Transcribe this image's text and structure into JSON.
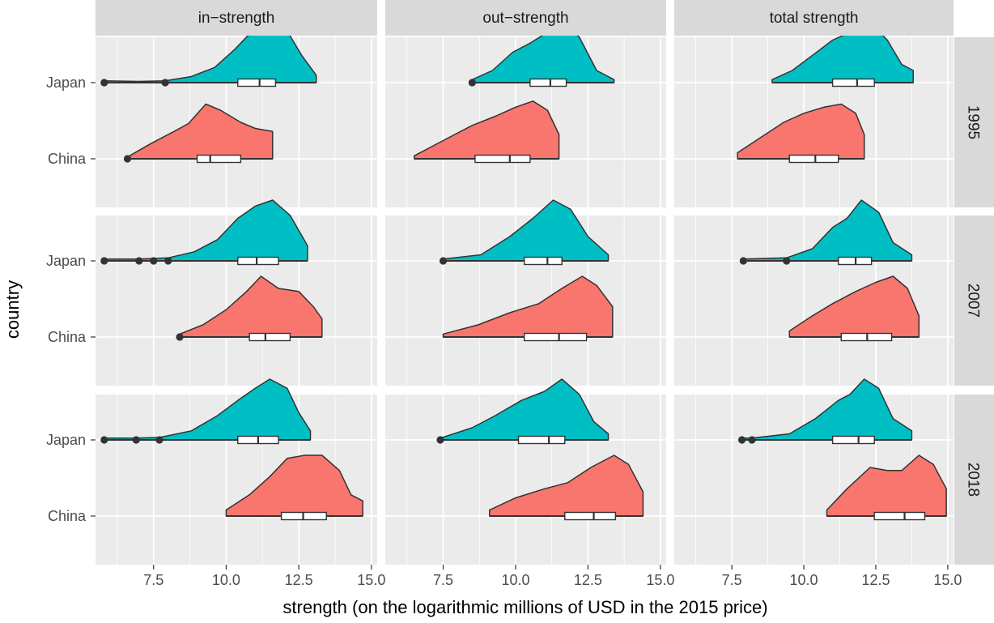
{
  "chart_data": {
    "type": "raincloud",
    "xlabel": "strength (on the logarithmic millions of USD in the 2015 price)",
    "ylabel": "country",
    "xlim": [
      5.5,
      15.2
    ],
    "x_ticks": [
      "7.5",
      "10.0",
      "12.5",
      "15.0"
    ],
    "x_tick_values": [
      7.5,
      10.0,
      12.5,
      15.0
    ],
    "categories": [
      "Japan",
      "China"
    ],
    "columns": [
      "in−strength",
      "out−strength",
      "total strength"
    ],
    "rows": [
      "1995",
      "2007",
      "2018"
    ],
    "colors": {
      "Japan": "#00BFC4",
      "China": "#F8766D",
      "panel_bg": "#EBEBEB",
      "strip_bg": "#D9D9D9"
    },
    "grid": true,
    "panels": [
      {
        "column": "in−strength",
        "row": "1995",
        "series": [
          {
            "country": "Japan",
            "min": 5.8,
            "q1": 10.4,
            "median": 11.15,
            "q3": 11.7,
            "max": 13.1,
            "outliers": [
              5.8,
              7.9
            ],
            "density": [
              [
                5.8,
                0.03
              ],
              [
                7.0,
                0.02
              ],
              [
                7.9,
                0.03
              ],
              [
                8.8,
                0.1
              ],
              [
                9.6,
                0.25
              ],
              [
                10.3,
                0.55
              ],
              [
                10.9,
                0.85
              ],
              [
                11.5,
                1.0
              ],
              [
                12.1,
                0.85
              ],
              [
                12.6,
                0.45
              ],
              [
                13.1,
                0.12
              ]
            ]
          },
          {
            "country": "China",
            "min": 6.6,
            "q1": 9.0,
            "median": 9.45,
            "q3": 10.5,
            "max": 11.6,
            "outliers": [
              6.6
            ],
            "density": [
              [
                6.6,
                0.03
              ],
              [
                7.4,
                0.25
              ],
              [
                8.2,
                0.45
              ],
              [
                8.7,
                0.58
              ],
              [
                9.3,
                0.9
              ],
              [
                9.8,
                0.8
              ],
              [
                10.5,
                0.6
              ],
              [
                11.0,
                0.5
              ],
              [
                11.6,
                0.45
              ]
            ]
          }
        ]
      },
      {
        "column": "out−strength",
        "row": "1995",
        "series": [
          {
            "country": "Japan",
            "min": 8.5,
            "q1": 10.5,
            "median": 11.2,
            "q3": 11.75,
            "max": 13.4,
            "outliers": [
              8.5
            ],
            "density": [
              [
                8.5,
                0.05
              ],
              [
                9.2,
                0.2
              ],
              [
                9.9,
                0.5
              ],
              [
                10.5,
                0.65
              ],
              [
                11.0,
                0.8
              ],
              [
                11.6,
                1.0
              ],
              [
                12.2,
                0.75
              ],
              [
                12.8,
                0.2
              ],
              [
                13.4,
                0.05
              ]
            ]
          },
          {
            "country": "China",
            "min": 6.5,
            "q1": 8.6,
            "median": 9.8,
            "q3": 10.5,
            "max": 11.5,
            "outliers": [],
            "density": [
              [
                6.5,
                0.05
              ],
              [
                7.5,
                0.3
              ],
              [
                8.5,
                0.55
              ],
              [
                9.3,
                0.7
              ],
              [
                10.0,
                0.85
              ],
              [
                10.6,
                0.95
              ],
              [
                11.1,
                0.8
              ],
              [
                11.5,
                0.4
              ]
            ]
          }
        ]
      },
      {
        "column": "total strength",
        "row": "1995",
        "series": [
          {
            "country": "Japan",
            "min": 8.9,
            "q1": 11.0,
            "median": 11.85,
            "q3": 12.45,
            "max": 13.8,
            "outliers": [],
            "density": [
              [
                8.9,
                0.05
              ],
              [
                9.6,
                0.2
              ],
              [
                10.3,
                0.45
              ],
              [
                11.0,
                0.7
              ],
              [
                11.7,
                0.85
              ],
              [
                12.3,
                1.0
              ],
              [
                12.9,
                0.7
              ],
              [
                13.4,
                0.3
              ],
              [
                13.8,
                0.2
              ]
            ]
          },
          {
            "country": "China",
            "min": 7.7,
            "q1": 9.5,
            "median": 10.4,
            "q3": 11.2,
            "max": 12.1,
            "outliers": [],
            "density": [
              [
                7.7,
                0.1
              ],
              [
                8.5,
                0.35
              ],
              [
                9.3,
                0.6
              ],
              [
                10.0,
                0.75
              ],
              [
                10.7,
                0.85
              ],
              [
                11.3,
                0.9
              ],
              [
                11.8,
                0.75
              ],
              [
                12.1,
                0.4
              ]
            ]
          }
        ]
      },
      {
        "column": "in−strength",
        "row": "2007",
        "series": [
          {
            "country": "Japan",
            "min": 5.8,
            "q1": 10.4,
            "median": 11.05,
            "q3": 11.8,
            "max": 12.8,
            "outliers": [
              5.8,
              7.0,
              7.5,
              8.0
            ],
            "density": [
              [
                5.8,
                0.03
              ],
              [
                7.0,
                0.03
              ],
              [
                8.0,
                0.05
              ],
              [
                8.9,
                0.15
              ],
              [
                9.7,
                0.35
              ],
              [
                10.4,
                0.7
              ],
              [
                11.0,
                0.9
              ],
              [
                11.6,
                1.0
              ],
              [
                12.2,
                0.75
              ],
              [
                12.8,
                0.25
              ]
            ]
          },
          {
            "country": "China",
            "min": 8.4,
            "q1": 10.8,
            "median": 11.35,
            "q3": 12.2,
            "max": 13.3,
            "outliers": [
              8.4
            ],
            "density": [
              [
                8.4,
                0.05
              ],
              [
                9.2,
                0.2
              ],
              [
                10.0,
                0.45
              ],
              [
                10.7,
                0.75
              ],
              [
                11.2,
                1.0
              ],
              [
                11.8,
                0.8
              ],
              [
                12.5,
                0.75
              ],
              [
                13.0,
                0.5
              ],
              [
                13.3,
                0.3
              ]
            ]
          }
        ]
      },
      {
        "column": "out−strength",
        "row": "2007",
        "series": [
          {
            "country": "Japan",
            "min": 7.5,
            "q1": 10.3,
            "median": 11.1,
            "q3": 11.6,
            "max": 13.2,
            "outliers": [
              7.5
            ],
            "density": [
              [
                7.5,
                0.03
              ],
              [
                8.8,
                0.1
              ],
              [
                9.8,
                0.4
              ],
              [
                10.6,
                0.7
              ],
              [
                11.3,
                1.0
              ],
              [
                11.9,
                0.85
              ],
              [
                12.5,
                0.4
              ],
              [
                13.2,
                0.1
              ]
            ]
          },
          {
            "country": "China",
            "min": 7.5,
            "q1": 10.3,
            "median": 11.5,
            "q3": 12.45,
            "max": 13.35,
            "outliers": [],
            "density": [
              [
                7.5,
                0.05
              ],
              [
                8.7,
                0.2
              ],
              [
                9.8,
                0.4
              ],
              [
                10.8,
                0.55
              ],
              [
                11.6,
                0.8
              ],
              [
                12.3,
                1.0
              ],
              [
                12.8,
                0.85
              ],
              [
                13.35,
                0.5
              ]
            ]
          }
        ]
      },
      {
        "column": "total strength",
        "row": "2007",
        "series": [
          {
            "country": "Japan",
            "min": 7.9,
            "q1": 11.2,
            "median": 11.8,
            "q3": 12.35,
            "max": 13.75,
            "outliers": [
              7.9,
              9.4
            ],
            "density": [
              [
                7.9,
                0.03
              ],
              [
                9.4,
                0.05
              ],
              [
                10.3,
                0.2
              ],
              [
                11.0,
                0.55
              ],
              [
                11.5,
                0.7
              ],
              [
                12.0,
                1.0
              ],
              [
                12.6,
                0.8
              ],
              [
                13.1,
                0.3
              ],
              [
                13.75,
                0.1
              ]
            ]
          },
          {
            "country": "China",
            "min": 9.5,
            "q1": 11.3,
            "median": 12.2,
            "q3": 13.05,
            "max": 14.0,
            "outliers": [],
            "density": [
              [
                9.5,
                0.1
              ],
              [
                10.3,
                0.35
              ],
              [
                11.0,
                0.55
              ],
              [
                11.8,
                0.75
              ],
              [
                12.5,
                0.9
              ],
              [
                13.1,
                1.0
              ],
              [
                13.6,
                0.8
              ],
              [
                14.0,
                0.35
              ]
            ]
          }
        ]
      },
      {
        "column": "in−strength",
        "row": "2018",
        "series": [
          {
            "country": "Japan",
            "min": 5.8,
            "q1": 10.4,
            "median": 11.1,
            "q3": 11.8,
            "max": 12.9,
            "outliers": [
              5.8,
              6.9,
              7.7
            ],
            "density": [
              [
                5.8,
                0.03
              ],
              [
                6.9,
                0.03
              ],
              [
                7.7,
                0.04
              ],
              [
                8.8,
                0.15
              ],
              [
                9.7,
                0.4
              ],
              [
                10.4,
                0.65
              ],
              [
                11.0,
                0.85
              ],
              [
                11.5,
                1.0
              ],
              [
                12.1,
                0.85
              ],
              [
                12.5,
                0.45
              ],
              [
                12.9,
                0.15
              ]
            ]
          },
          {
            "country": "China",
            "min": 10.0,
            "q1": 11.9,
            "median": 12.65,
            "q3": 13.45,
            "max": 14.7,
            "outliers": [],
            "density": [
              [
                10.0,
                0.1
              ],
              [
                10.8,
                0.35
              ],
              [
                11.5,
                0.65
              ],
              [
                12.1,
                0.95
              ],
              [
                12.7,
                1.0
              ],
              [
                13.3,
                1.0
              ],
              [
                13.9,
                0.75
              ],
              [
                14.3,
                0.35
              ],
              [
                14.7,
                0.25
              ]
            ]
          }
        ]
      },
      {
        "column": "out−strength",
        "row": "2018",
        "series": [
          {
            "country": "Japan",
            "min": 7.4,
            "q1": 10.1,
            "median": 11.15,
            "q3": 11.7,
            "max": 13.2,
            "outliers": [
              7.4
            ],
            "density": [
              [
                7.4,
                0.03
              ],
              [
                8.5,
                0.2
              ],
              [
                9.3,
                0.4
              ],
              [
                10.2,
                0.65
              ],
              [
                11.0,
                0.8
              ],
              [
                11.6,
                1.0
              ],
              [
                12.2,
                0.75
              ],
              [
                12.7,
                0.3
              ],
              [
                13.2,
                0.1
              ]
            ]
          },
          {
            "country": "China",
            "min": 9.1,
            "q1": 11.7,
            "median": 12.7,
            "q3": 13.45,
            "max": 14.4,
            "outliers": [],
            "density": [
              [
                9.1,
                0.1
              ],
              [
                10.0,
                0.3
              ],
              [
                11.0,
                0.45
              ],
              [
                11.8,
                0.55
              ],
              [
                12.6,
                0.8
              ],
              [
                13.4,
                1.0
              ],
              [
                13.9,
                0.85
              ],
              [
                14.4,
                0.4
              ]
            ]
          }
        ]
      },
      {
        "column": "total strength",
        "row": "2018",
        "series": [
          {
            "country": "Japan",
            "min": 7.85,
            "q1": 11.0,
            "median": 11.9,
            "q3": 12.45,
            "max": 13.75,
            "outliers": [
              7.85,
              8.2
            ],
            "density": [
              [
                7.85,
                0.03
              ],
              [
                8.2,
                0.03
              ],
              [
                9.5,
                0.1
              ],
              [
                10.4,
                0.35
              ],
              [
                11.2,
                0.65
              ],
              [
                11.6,
                0.75
              ],
              [
                12.1,
                1.0
              ],
              [
                12.6,
                0.85
              ],
              [
                13.1,
                0.35
              ],
              [
                13.75,
                0.15
              ]
            ]
          },
          {
            "country": "China",
            "min": 10.8,
            "q1": 12.45,
            "median": 13.5,
            "q3": 14.2,
            "max": 14.95,
            "outliers": [],
            "density": [
              [
                10.8,
                0.1
              ],
              [
                11.5,
                0.45
              ],
              [
                12.3,
                0.8
              ],
              [
                12.9,
                0.75
              ],
              [
                13.4,
                0.75
              ],
              [
                14.0,
                1.0
              ],
              [
                14.5,
                0.85
              ],
              [
                14.95,
                0.45
              ]
            ]
          }
        ]
      }
    ]
  }
}
